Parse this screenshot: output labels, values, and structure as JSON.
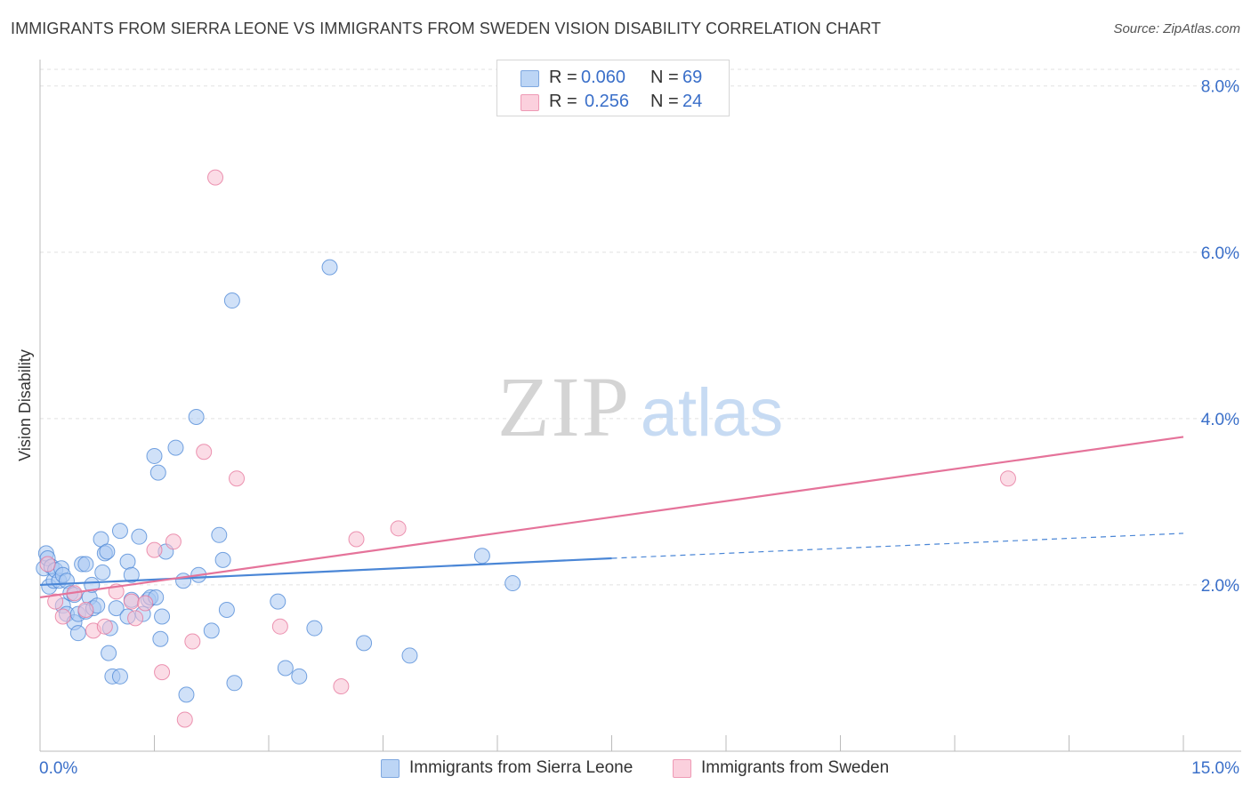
{
  "title": "IMMIGRANTS FROM SIERRA LEONE VS IMMIGRANTS FROM SWEDEN VISION DISABILITY CORRELATION CHART",
  "source": "Source: ZipAtlas.com",
  "watermark": {
    "zip": "ZIP",
    "atlas": "atlas"
  },
  "legend_top": [
    {
      "r_label": "R =",
      "r_value": "0.060",
      "n_label": "N =",
      "n_value": "69",
      "color": "#9fc3f0"
    },
    {
      "r_label": "R =",
      "r_value": "0.256",
      "n_label": "N =",
      "n_value": "24",
      "color": "#f7b3c8"
    }
  ],
  "legend_bottom": [
    {
      "label": "Immigrants from Sierra Leone",
      "color": "#9fc3f0"
    },
    {
      "label": "Immigrants from Sweden",
      "color": "#f7b3c8"
    }
  ],
  "chart_data": {
    "type": "scatter",
    "xlabel": "",
    "ylabel": "Vision Disability",
    "xlim": [
      0,
      15
    ],
    "ylim": [
      0,
      8.2
    ],
    "x_tick_labels": [
      "0.0%",
      "15.0%"
    ],
    "y_ticks": [
      2,
      4,
      6,
      8
    ],
    "y_tick_labels": [
      "2.0%",
      "4.0%",
      "6.0%",
      "8.0%"
    ],
    "grid": true,
    "series": [
      {
        "name": "Immigrants from Sierra Leone",
        "color": "#4a86d6",
        "fill": "#aac9f2",
        "trend": {
          "x0": 0.0,
          "y0": 2.0,
          "x1": 7.5,
          "y1": 2.32,
          "dash_to_x": 15.0,
          "dash_to_y": 2.62
        },
        "points": [
          [
            0.05,
            2.2
          ],
          [
            0.08,
            2.38
          ],
          [
            0.1,
            2.32
          ],
          [
            0.12,
            1.98
          ],
          [
            0.15,
            2.22
          ],
          [
            0.18,
            2.05
          ],
          [
            0.2,
            2.18
          ],
          [
            0.25,
            2.05
          ],
          [
            0.28,
            2.2
          ],
          [
            0.3,
            2.12
          ],
          [
            0.35,
            2.05
          ],
          [
            0.3,
            1.75
          ],
          [
            0.35,
            1.65
          ],
          [
            0.4,
            1.9
          ],
          [
            0.45,
            1.88
          ],
          [
            0.45,
            1.55
          ],
          [
            0.5,
            1.65
          ],
          [
            0.5,
            1.42
          ],
          [
            0.55,
            2.25
          ],
          [
            0.6,
            1.68
          ],
          [
            0.6,
            2.25
          ],
          [
            0.65,
            1.85
          ],
          [
            0.68,
            2.0
          ],
          [
            0.7,
            1.72
          ],
          [
            0.75,
            1.75
          ],
          [
            0.8,
            2.55
          ],
          [
            0.82,
            2.15
          ],
          [
            0.85,
            2.38
          ],
          [
            0.88,
            2.4
          ],
          [
            0.9,
            1.18
          ],
          [
            0.92,
            1.48
          ],
          [
            0.95,
            0.9
          ],
          [
            1.0,
            1.72
          ],
          [
            1.05,
            2.65
          ],
          [
            1.05,
            0.9
          ],
          [
            1.15,
            1.62
          ],
          [
            1.15,
            2.28
          ],
          [
            1.2,
            1.82
          ],
          [
            1.2,
            2.12
          ],
          [
            1.3,
            2.58
          ],
          [
            1.35,
            1.65
          ],
          [
            1.42,
            1.82
          ],
          [
            1.45,
            1.85
          ],
          [
            1.5,
            3.55
          ],
          [
            1.52,
            1.85
          ],
          [
            1.55,
            3.35
          ],
          [
            1.58,
            1.35
          ],
          [
            1.6,
            1.62
          ],
          [
            1.65,
            2.4
          ],
          [
            1.78,
            3.65
          ],
          [
            1.88,
            2.05
          ],
          [
            1.92,
            0.68
          ],
          [
            2.05,
            4.02
          ],
          [
            2.08,
            2.12
          ],
          [
            2.25,
            1.45
          ],
          [
            2.35,
            2.6
          ],
          [
            2.4,
            2.3
          ],
          [
            2.45,
            1.7
          ],
          [
            2.52,
            5.42
          ],
          [
            2.55,
            0.82
          ],
          [
            3.12,
            1.8
          ],
          [
            3.22,
            1.0
          ],
          [
            3.4,
            0.9
          ],
          [
            3.6,
            1.48
          ],
          [
            3.8,
            5.82
          ],
          [
            4.25,
            1.3
          ],
          [
            4.85,
            1.15
          ],
          [
            5.8,
            2.35
          ],
          [
            6.2,
            2.02
          ]
        ]
      },
      {
        "name": "Immigrants from Sweden",
        "color": "#e5739a",
        "fill": "#f7bfd1",
        "trend": {
          "x0": 0.0,
          "y0": 1.85,
          "x1": 15.0,
          "y1": 3.78
        },
        "points": [
          [
            0.1,
            2.25
          ],
          [
            0.2,
            1.8
          ],
          [
            0.3,
            1.62
          ],
          [
            0.45,
            1.9
          ],
          [
            0.6,
            1.7
          ],
          [
            0.7,
            1.45
          ],
          [
            0.85,
            1.5
          ],
          [
            1.0,
            1.92
          ],
          [
            1.2,
            1.8
          ],
          [
            1.25,
            1.6
          ],
          [
            1.38,
            1.78
          ],
          [
            1.5,
            2.42
          ],
          [
            1.6,
            0.95
          ],
          [
            1.75,
            2.52
          ],
          [
            1.9,
            0.38
          ],
          [
            2.0,
            1.32
          ],
          [
            2.15,
            3.6
          ],
          [
            2.3,
            6.9
          ],
          [
            2.58,
            3.28
          ],
          [
            3.15,
            1.5
          ],
          [
            3.95,
            0.78
          ],
          [
            4.15,
            2.55
          ],
          [
            4.7,
            2.68
          ],
          [
            12.7,
            3.28
          ]
        ]
      }
    ]
  }
}
